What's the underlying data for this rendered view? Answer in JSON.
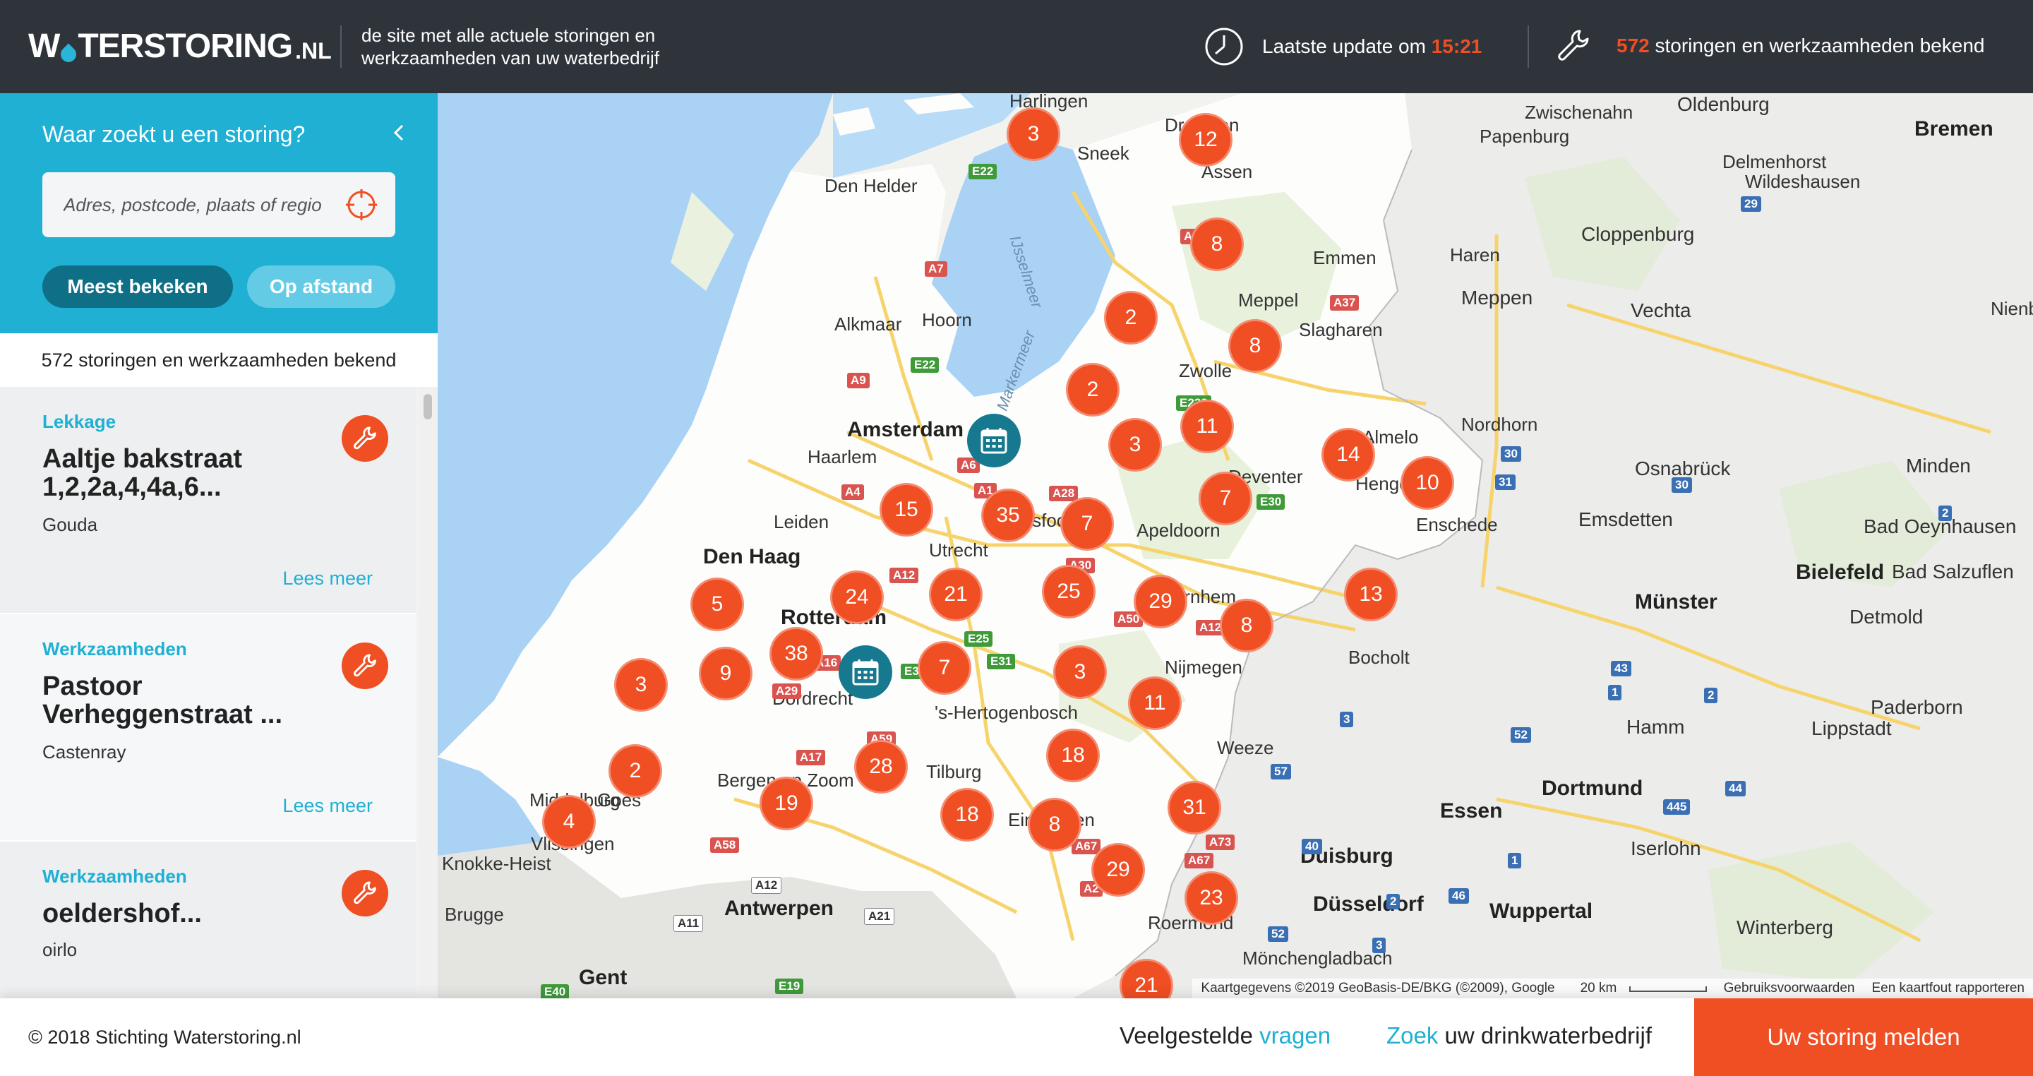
{
  "header": {
    "logo_main_a": "W",
    "logo_main_b": "TERSTORING",
    "logo_tld": ".NL",
    "tagline": "de site met alle actuele storingen en werkzaamheden van uw waterbedrijf",
    "update_prefix": "Laatste update om ",
    "update_time": "15:21",
    "count_number": "572",
    "count_suffix": " storingen en werkzaamheden bekend"
  },
  "search": {
    "title": "Waar zoekt u een storing?",
    "placeholder": "Adres, postcode, plaats of regio",
    "filter_primary": "Meest bekeken",
    "filter_secondary": "Op afstand"
  },
  "list": {
    "count_label": "572 storingen en werkzaamheden bekend",
    "items": [
      {
        "category": "Lekkage",
        "title": "Aaltje bakstraat 1,2,2a,4,4a,6...",
        "place": "Gouda",
        "more": "Lees meer"
      },
      {
        "category": "Werkzaamheden",
        "title": "Pastoor Verheggenstraat ...",
        "place": "Castenray",
        "more": "Lees meer"
      },
      {
        "category": "Werkzaamheden",
        "title": "oeldershof...",
        "place": "oirlo",
        "more": ""
      }
    ]
  },
  "map": {
    "places": [
      {
        "id": "haringen",
        "label": "Harlingen"
      },
      {
        "id": "drachten",
        "label": "Drachten"
      },
      {
        "id": "zwischenahn",
        "label": "Zwischenahn"
      },
      {
        "id": "oldenburg",
        "label": "Oldenburg"
      },
      {
        "id": "bremen",
        "label": "Bremen"
      },
      {
        "id": "papenburg",
        "label": "Papenburg"
      },
      {
        "id": "sneek",
        "label": "Sneek"
      },
      {
        "id": "assen",
        "label": "Assen"
      },
      {
        "id": "delmenhorst",
        "label": "Delmenhorst"
      },
      {
        "id": "denhelder",
        "label": "Den Helder"
      },
      {
        "id": "wildeshausen",
        "label": "Wildeshausen"
      },
      {
        "id": "cloppenburg",
        "label": "Cloppenburg"
      },
      {
        "id": "emmen",
        "label": "Emmen"
      },
      {
        "id": "haren",
        "label": "Haren"
      },
      {
        "id": "meppel",
        "label": "Meppel"
      },
      {
        "id": "meppen",
        "label": "Meppen"
      },
      {
        "id": "vechta",
        "label": "Vechta"
      },
      {
        "id": "nienburg",
        "label": "Nienbur"
      },
      {
        "id": "slagharen",
        "label": "Slagharen"
      },
      {
        "id": "alkmaar",
        "label": "Alkmaar"
      },
      {
        "id": "hoorn",
        "label": "Hoorn"
      },
      {
        "id": "zwolle",
        "label": "Zwolle"
      },
      {
        "id": "nordhorn",
        "label": "Nordhorn"
      },
      {
        "id": "amsterdam",
        "label": "Amsterdam"
      },
      {
        "id": "haarlem",
        "label": "Haarlem"
      },
      {
        "id": "almelo",
        "label": "Almelo"
      },
      {
        "id": "osnabruck",
        "label": "Osnabrück"
      },
      {
        "id": "minden",
        "label": "Minden"
      },
      {
        "id": "deventer",
        "label": "Deventer"
      },
      {
        "id": "hengelo",
        "label": "Hengelo"
      },
      {
        "id": "leiden",
        "label": "Leiden"
      },
      {
        "id": "amersfoort",
        "label": "Amersfoort"
      },
      {
        "id": "apeldoorn",
        "label": "Apeldoorn"
      },
      {
        "id": "enschede",
        "label": "Enschede"
      },
      {
        "id": "emsdetten",
        "label": "Emsdetten"
      },
      {
        "id": "oeynhausen",
        "label": "Bad Oeynhausen"
      },
      {
        "id": "denhaag",
        "label": "Den Haag"
      },
      {
        "id": "utrecht",
        "label": "Utrecht"
      },
      {
        "id": "bielefeld",
        "label": "Bielefeld"
      },
      {
        "id": "salzuflen",
        "label": "Bad Salzuflen"
      },
      {
        "id": "rotterdam",
        "label": "Rotterdam"
      },
      {
        "id": "arnhem",
        "label": "Arnhem"
      },
      {
        "id": "munster",
        "label": "Münster"
      },
      {
        "id": "detmold",
        "label": "Detmold"
      },
      {
        "id": "bocholt",
        "label": "Bocholt"
      },
      {
        "id": "nijmegen",
        "label": "Nijmegen"
      },
      {
        "id": "dordrecht",
        "label": "Dordrecht"
      },
      {
        "id": "hertogenbosch",
        "label": "'s-Hertogenbosch"
      },
      {
        "id": "paderborn",
        "label": "Paderborn"
      },
      {
        "id": "hamm",
        "label": "Hamm"
      },
      {
        "id": "lippstadt",
        "label": "Lippstadt"
      },
      {
        "id": "weeze",
        "label": "Weeze"
      },
      {
        "id": "bergen",
        "label": "Bergen op Zoom"
      },
      {
        "id": "tilburg",
        "label": "Tilburg"
      },
      {
        "id": "dortmund",
        "label": "Dortmund"
      },
      {
        "id": "middelburg",
        "label": "Middelburg"
      },
      {
        "id": "goes",
        "label": "Goes"
      },
      {
        "id": "essen",
        "label": "Essen"
      },
      {
        "id": "vlissingen",
        "label": "Vlissingen"
      },
      {
        "id": "eindhoven",
        "label": "Eindhoven"
      },
      {
        "id": "iserlohn",
        "label": "Iserlohn"
      },
      {
        "id": "knokke",
        "label": "Knokke-Heist"
      },
      {
        "id": "duisburg",
        "label": "Duisburg"
      },
      {
        "id": "antwerpen",
        "label": "Antwerpen"
      },
      {
        "id": "wuppertal",
        "label": "Wuppertal"
      },
      {
        "id": "dusseldorf",
        "label": "Düsseldorf"
      },
      {
        "id": "brugge",
        "label": "Brugge"
      },
      {
        "id": "roermond",
        "label": "Roermond"
      },
      {
        "id": "winterberg",
        "label": "Winterberg"
      },
      {
        "id": "monchengladbach",
        "label": "Mönchengladbach"
      },
      {
        "id": "gent",
        "label": "Gent"
      },
      {
        "id": "ijsselmeer",
        "label": "IJsselmeer"
      },
      {
        "id": "markermeer",
        "label": "Markermeer"
      }
    ],
    "roads": [
      "E22",
      "A7",
      "E22",
      "A9",
      "A6",
      "A4",
      "A1",
      "A28",
      "A12",
      "A30",
      "A50",
      "A12",
      "E30",
      "E25",
      "E31",
      "A16",
      "A29",
      "E3",
      "A59",
      "A17",
      "A58",
      "A67",
      "A73",
      "A67",
      "A2",
      "A12",
      "A11",
      "A21",
      "E40",
      "E19",
      "A37",
      "A7",
      "E232",
      "29",
      "30",
      "31",
      "30",
      "2",
      "43",
      "1",
      "2",
      "3",
      "52",
      "57",
      "40",
      "44",
      "445",
      "1",
      "2",
      "46",
      "3",
      "52"
    ],
    "clusters": [
      "3",
      "12",
      "8",
      "2",
      "8",
      "2",
      "11",
      "3",
      "14",
      "10",
      "7",
      "15",
      "35",
      "7",
      "24",
      "21",
      "25",
      "29",
      "5",
      "13",
      "8",
      "38",
      "9",
      "7",
      "3",
      "11",
      "3",
      "28",
      "18",
      "2",
      "19",
      "18",
      "8",
      "31",
      "4",
      "29",
      "23",
      "21"
    ],
    "attribution": {
      "data": "Kaartgegevens ©2019 GeoBasis-DE/BKG (©2009), Google",
      "scale": "20 km",
      "terms": "Gebruiksvoorwaarden",
      "report": "Een kaartfout rapporteren"
    }
  },
  "footer": {
    "copyright": "© 2018 Stichting Waterstoring.nl",
    "faq_a": "Veelgestelde ",
    "faq_b": "vragen",
    "find_a": "Zoek",
    "find_b": " uw drinkwaterbedrijf",
    "report_button": "Uw storing melden"
  },
  "colors": {
    "accent": "#f04e23",
    "brand_blue": "#1fb0d3",
    "header_bg": "#2f343b",
    "calendar_marker": "#17798f"
  },
  "icons": [
    "clock-icon",
    "wrench-icon",
    "chevron-left-icon",
    "locate-icon",
    "calendar-icon",
    "water-drop-icon"
  ]
}
